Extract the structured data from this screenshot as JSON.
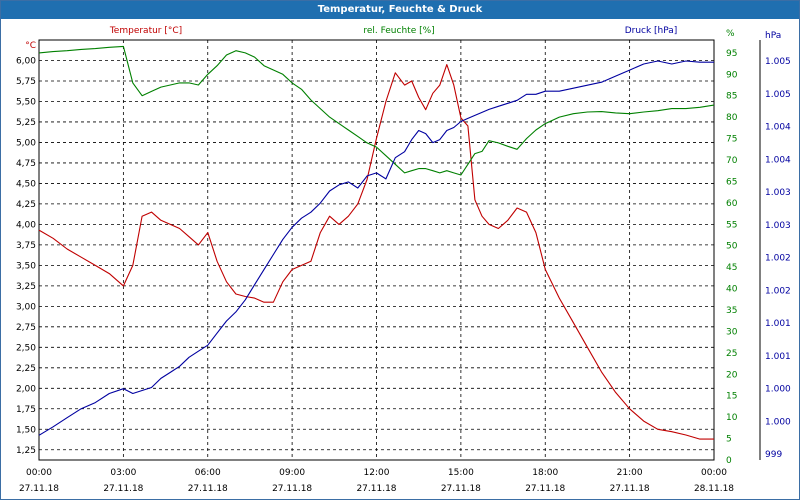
{
  "window": {
    "title": "Temperatur, Feuchte & Druck"
  },
  "colors": {
    "temperature": "#c00000",
    "humidity": "#008000",
    "pressure": "#0000a0",
    "grid": "#000000",
    "axis_text": "#000000"
  },
  "chart_data": {
    "type": "line",
    "title": "Temperatur, Feuchte & Druck",
    "x": [
      "00:00",
      "00:30",
      "01:00",
      "01:30",
      "02:00",
      "02:30",
      "03:00",
      "03:20",
      "03:40",
      "04:00",
      "04:20",
      "04:40",
      "05:00",
      "05:20",
      "05:40",
      "06:00",
      "06:20",
      "06:40",
      "07:00",
      "07:20",
      "07:40",
      "08:00",
      "08:20",
      "08:40",
      "09:00",
      "09:20",
      "09:40",
      "10:00",
      "10:20",
      "10:40",
      "11:00",
      "11:20",
      "11:40",
      "12:00",
      "12:20",
      "12:40",
      "13:00",
      "13:15",
      "13:30",
      "13:45",
      "14:00",
      "14:15",
      "14:30",
      "14:45",
      "15:00",
      "15:15",
      "15:30",
      "15:45",
      "16:00",
      "16:20",
      "16:40",
      "17:00",
      "17:20",
      "17:40",
      "18:00",
      "18:30",
      "19:00",
      "19:30",
      "20:00",
      "20:30",
      "21:00",
      "21:30",
      "22:00",
      "22:30",
      "23:00",
      "23:30",
      "00:00"
    ],
    "x_ticks": [
      {
        "time": "00:00",
        "date": "27.11.18"
      },
      {
        "time": "03:00",
        "date": "27.11.18"
      },
      {
        "time": "06:00",
        "date": "27.11.18"
      },
      {
        "time": "09:00",
        "date": "27.11.18"
      },
      {
        "time": "12:00",
        "date": "27.11.18"
      },
      {
        "time": "15:00",
        "date": "27.11.18"
      },
      {
        "time": "18:00",
        "date": "27.11.18"
      },
      {
        "time": "21:00",
        "date": "27.11.18"
      },
      {
        "time": "00:00",
        "date": "28.11.18"
      }
    ],
    "axes": {
      "temperature": {
        "label": "Temperatur [°C]",
        "unit": "°C",
        "ylim": [
          1.125,
          6.25
        ],
        "ticks": [
          "1,25",
          "1,50",
          "1,75",
          "2,00",
          "2,25",
          "2,50",
          "2,75",
          "3,00",
          "3,25",
          "3,50",
          "3,75",
          "4,00",
          "4,25",
          "4,50",
          "4,75",
          "5,00",
          "5,25",
          "5,50",
          "5,75",
          "6,00"
        ]
      },
      "humidity": {
        "label": "rel. Feuchte [%]",
        "unit": "%",
        "ylim": [
          0,
          98
        ],
        "ticks": [
          "0",
          "5",
          "10",
          "15",
          "20",
          "25",
          "30",
          "35",
          "40",
          "45",
          "50",
          "55",
          "60",
          "65",
          "70",
          "75",
          "80",
          "85",
          "90",
          "95"
        ]
      },
      "pressure": {
        "label": "Druck [hPa]",
        "unit": "hPa",
        "ticks": [
          "999",
          "1.000",
          "1.000",
          "1.001",
          "1.001",
          "1.002",
          "1.002",
          "1.003",
          "1.003",
          "1.004",
          "1.004",
          "1.005",
          "1.005"
        ]
      }
    },
    "series": [
      {
        "name": "Temperatur [°C]",
        "axis": "temperature",
        "values": [
          3.93,
          3.83,
          3.7,
          3.6,
          3.5,
          3.4,
          3.25,
          3.5,
          4.1,
          4.15,
          4.05,
          4.0,
          3.95,
          3.85,
          3.75,
          3.9,
          3.55,
          3.3,
          3.15,
          3.12,
          3.1,
          3.05,
          3.05,
          3.3,
          3.45,
          3.5,
          3.55,
          3.9,
          4.1,
          4.0,
          4.1,
          4.25,
          4.55,
          5.05,
          5.5,
          5.85,
          5.7,
          5.75,
          5.55,
          5.4,
          5.6,
          5.7,
          5.95,
          5.7,
          5.3,
          5.2,
          4.3,
          4.1,
          4.0,
          3.95,
          4.05,
          4.2,
          4.15,
          3.9,
          3.45,
          3.1,
          2.8,
          2.5,
          2.2,
          1.95,
          1.75,
          1.6,
          1.5,
          1.47,
          1.43,
          1.38,
          1.38
        ]
      },
      {
        "name": "rel. Feuchte [%]",
        "axis": "humidity",
        "values": [
          95,
          95.3,
          95.5,
          95.8,
          96,
          96.3,
          96.5,
          88,
          85,
          86,
          87,
          87.5,
          88,
          88,
          87.5,
          90,
          92,
          94.5,
          95.5,
          95,
          94,
          92,
          91,
          90,
          88,
          86.5,
          84,
          82,
          80,
          78.5,
          77,
          75.5,
          74,
          73,
          71,
          69,
          67,
          67.5,
          68,
          68,
          67.5,
          67,
          67.5,
          67,
          66.5,
          69,
          71.5,
          72,
          74.5,
          74,
          73.2,
          72.5,
          75,
          77,
          78.5,
          80,
          80.8,
          81.2,
          81.3,
          81,
          80.8,
          81.2,
          81.5,
          82,
          82,
          82.3,
          82.8
        ]
      },
      {
        "name": "Druck [hPa]",
        "axis": "pressure",
        "values": [
          998.81,
          998.95,
          999.1,
          999.25,
          999.35,
          999.5,
          999.58,
          999.5,
          999.55,
          999.6,
          999.75,
          999.85,
          999.95,
          1000.1,
          1000.2,
          1000.3,
          1000.5,
          1000.7,
          1000.85,
          1001.05,
          1001.3,
          1001.55,
          1001.8,
          1002.05,
          1002.25,
          1002.4,
          1002.5,
          1002.65,
          1002.85,
          1002.95,
          1003.0,
          1002.9,
          1003.1,
          1003.15,
          1003.05,
          1003.4,
          1003.5,
          1003.7,
          1003.85,
          1003.8,
          1003.65,
          1003.7,
          1003.85,
          1003.9,
          1004.0,
          1004.05,
          1004.1,
          1004.15,
          1004.2,
          1004.25,
          1004.3,
          1004.35,
          1004.45,
          1004.45,
          1004.5,
          1004.5,
          1004.55,
          1004.6,
          1004.65,
          1004.75,
          1004.85,
          1004.95,
          1005.0,
          1004.95,
          1005.0,
          1004.98,
          1004.98
        ]
      }
    ],
    "grid": true
  }
}
